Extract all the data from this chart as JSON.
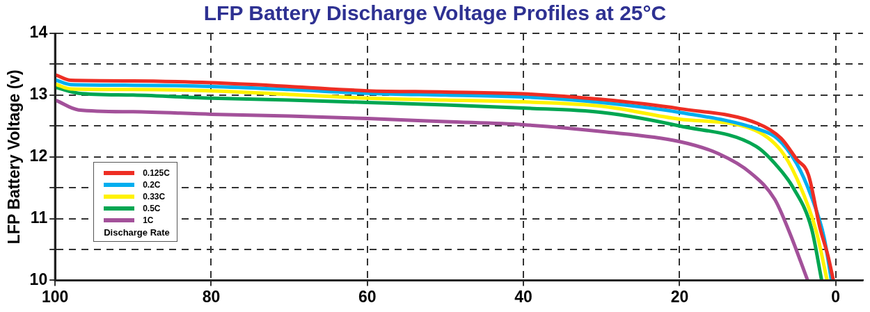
{
  "chart_data": {
    "type": "line",
    "title": "LFP Battery Discharge Voltage Profiles at 25°C",
    "ylabel": "LFP Battery Voltage (v)",
    "legend_title": "Discharge Rate",
    "legend": "bottom left",
    "grid": true,
    "marker": "none",
    "line_style": "solid",
    "xlim": [
      100,
      -3.5
    ],
    "xticks": [
      100,
      80,
      60,
      40,
      20,
      0
    ],
    "ylim": [
      10,
      14
    ],
    "yticks": [
      10,
      {
        "value": 10.5,
        "label": null
      },
      11,
      {
        "value": 11.5,
        "label": null
      },
      12,
      {
        "value": 12.5,
        "label": null
      },
      13,
      {
        "value": 13.5,
        "label": null
      },
      14
    ],
    "series": [
      {
        "name": "0.125C",
        "color": "#ee2e24",
        "x": [
          99.8,
          98,
          90,
          80,
          70,
          60,
          50,
          40,
          30,
          20,
          10,
          7,
          5,
          3.5,
          2,
          1,
          0.3
        ],
        "values": [
          13.32,
          13.24,
          13.23,
          13.2,
          13.14,
          13.07,
          13.05,
          13.02,
          12.93,
          12.78,
          12.54,
          12.3,
          11.96,
          11.71,
          10.84,
          10.4,
          10
        ]
      },
      {
        "name": "0.2C",
        "color": "#00aeef",
        "x": [
          99.8,
          98,
          90,
          80,
          70,
          60,
          50,
          40,
          30,
          20,
          10,
          7.5,
          5,
          3.1,
          1.5,
          0.55
        ],
        "values": [
          13.24,
          13.17,
          13.16,
          13.14,
          13.09,
          13.03,
          13,
          12.97,
          12.88,
          12.72,
          12.45,
          12.3,
          11.89,
          11.35,
          10.7,
          10
        ]
      },
      {
        "name": "0.33C",
        "color": "#fff200",
        "x": [
          99.8,
          98,
          90,
          80,
          70,
          60,
          50,
          40,
          30,
          20,
          10.9,
          7,
          4.7,
          2.5,
          1.1
        ],
        "values": [
          13.17,
          13.1,
          13.09,
          13.07,
          13.01,
          12.95,
          12.92,
          12.89,
          12.82,
          12.61,
          12.46,
          12.1,
          11.57,
          10.8,
          10
        ]
      },
      {
        "name": "0.5C",
        "color": "#00a651",
        "x": [
          99.8,
          97,
          90,
          80,
          70,
          60,
          50,
          40,
          30,
          20,
          10.2,
          7.5,
          5.4,
          3.1,
          1.8
        ],
        "values": [
          13.12,
          13.03,
          13,
          12.95,
          12.92,
          12.88,
          12.84,
          12.79,
          12.72,
          12.5,
          12.17,
          11.85,
          11.49,
          10.84,
          10
        ]
      },
      {
        "name": "1C",
        "color": "#a3519a",
        "x": [
          99.8,
          97,
          90,
          80,
          70,
          60,
          50,
          40,
          30,
          20.1,
          15,
          10.9,
          7.8,
          5.9,
          3.6
        ],
        "values": [
          12.91,
          12.76,
          12.73,
          12.69,
          12.66,
          12.62,
          12.57,
          12.52,
          12.41,
          12.25,
          12.05,
          11.74,
          11.31,
          10.77,
          10
        ]
      }
    ]
  }
}
